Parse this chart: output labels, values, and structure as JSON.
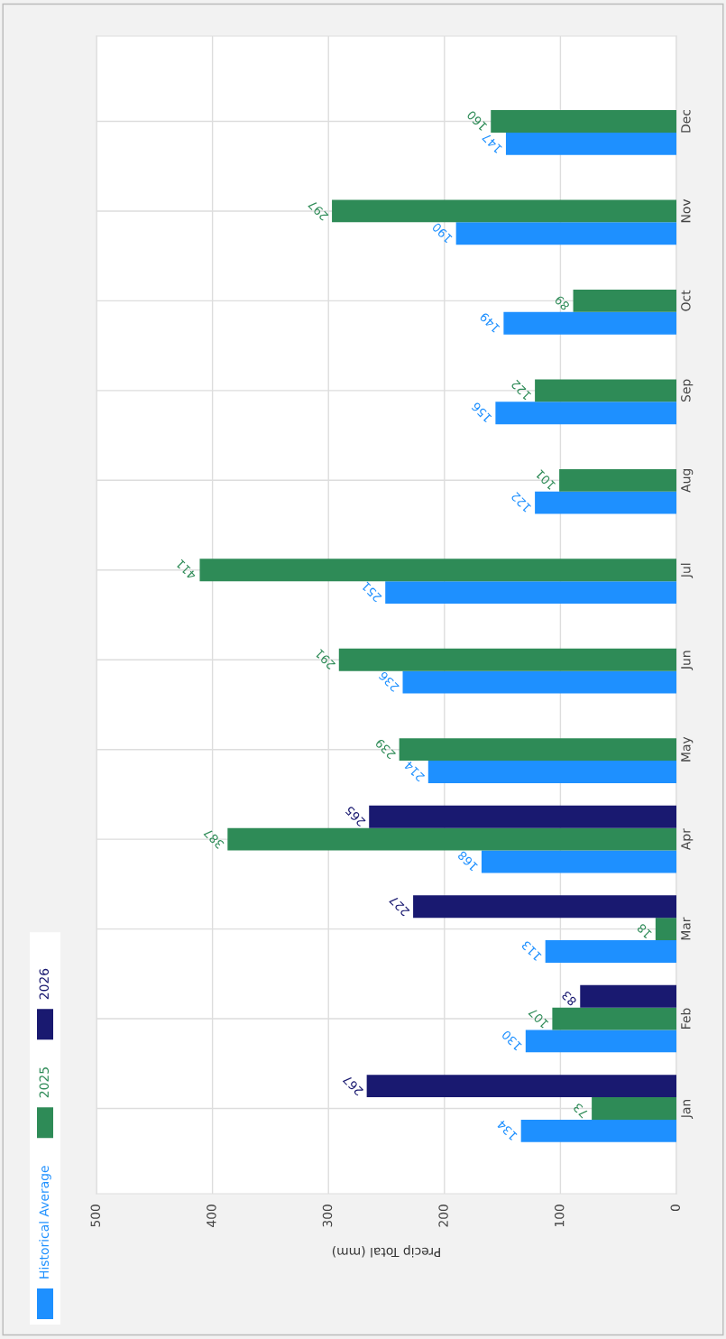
{
  "chart_data": {
    "type": "bar",
    "orientation": "horizontal",
    "xlabel": "Precip Total (mm)",
    "categories": [
      "Dec",
      "Nov",
      "Oct",
      "Sep",
      "Aug",
      "Jul",
      "Jun",
      "May",
      "Apr",
      "Mar",
      "Feb",
      "Jan"
    ],
    "series": [
      {
        "name": "Historical Average",
        "color": "#1e90ff",
        "values": [
          147,
          190,
          149,
          156,
          122,
          251,
          236,
          214,
          168,
          113,
          130,
          134
        ]
      },
      {
        "name": "2025",
        "color": "#2e8b57",
        "values": [
          160,
          297,
          89,
          122,
          101,
          411,
          291,
          239,
          387,
          18,
          107,
          73
        ]
      },
      {
        "name": "2026",
        "color": "#191970",
        "values": [
          null,
          null,
          null,
          null,
          null,
          null,
          null,
          null,
          265,
          227,
          83,
          267
        ]
      }
    ],
    "xlim": [
      500,
      0
    ],
    "xticks": [
      0,
      100,
      200,
      300,
      400,
      500
    ],
    "grid": true,
    "legend": "left",
    "data_labels": true
  }
}
